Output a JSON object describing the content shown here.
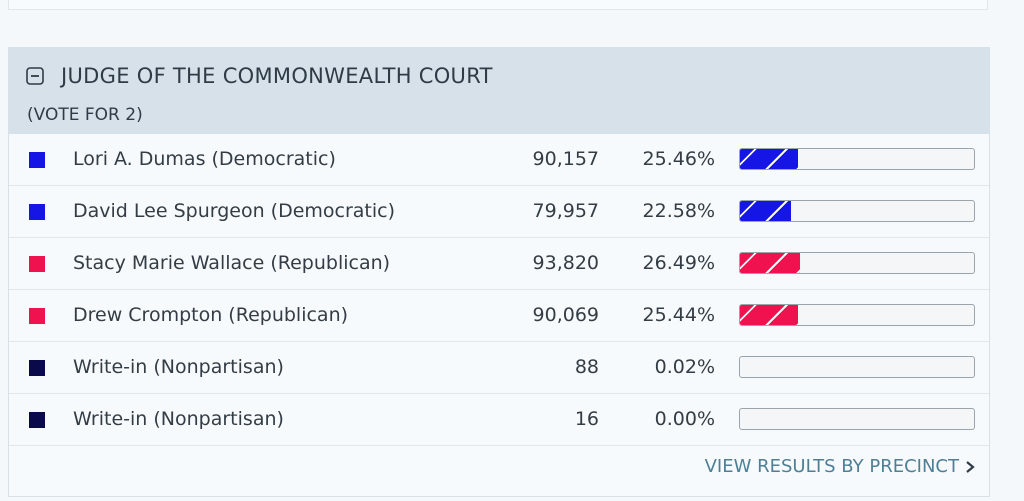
{
  "race": {
    "title": "JUDGE OF THE COMMONWEALTH COURT",
    "vote_for": "(VOTE FOR 2)",
    "footer_link": "VIEW RESULTS BY PRECINCT"
  },
  "colors": {
    "democratic": "#1515e6",
    "republican": "#f0124f",
    "nonpartisan": "#0a0a4a"
  },
  "candidates": [
    {
      "name": "Lori A. Dumas (Democratic)",
      "votes": "90,157",
      "pct": "25.46%",
      "share": 25.46,
      "party": "democratic"
    },
    {
      "name": "David Lee Spurgeon (Democratic)",
      "votes": "79,957",
      "pct": "22.58%",
      "share": 22.58,
      "party": "democratic"
    },
    {
      "name": "Stacy Marie Wallace (Republican)",
      "votes": "93,820",
      "pct": "26.49%",
      "share": 26.49,
      "party": "republican"
    },
    {
      "name": "Drew Crompton (Republican)",
      "votes": "90,069",
      "pct": "25.44%",
      "share": 25.44,
      "party": "republican"
    },
    {
      "name": "Write-in (Nonpartisan)",
      "votes": "88",
      "pct": "0.02%",
      "share": 0.02,
      "party": "nonpartisan"
    },
    {
      "name": "Write-in (Nonpartisan)",
      "votes": "16",
      "pct": "0.00%",
      "share": 0.0,
      "party": "nonpartisan"
    }
  ]
}
